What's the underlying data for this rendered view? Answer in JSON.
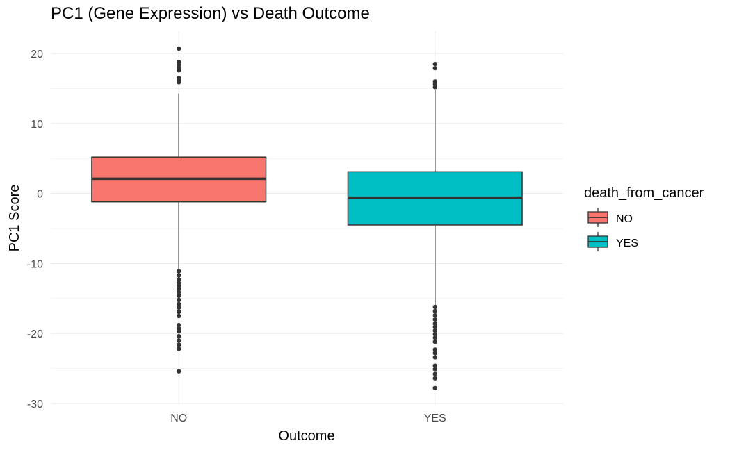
{
  "chart_data": {
    "type": "boxplot",
    "title": "PC1 (Gene Expression) vs Death Outcome",
    "xlabel": "Outcome",
    "ylabel": "PC1 Score",
    "categories": [
      "NO",
      "YES"
    ],
    "ylim": [
      -30,
      22
    ],
    "yticks": [
      -30,
      -20,
      -10,
      0,
      10,
      20
    ],
    "grid": true,
    "legend": {
      "title": "death_from_cancer",
      "placement": "right",
      "entries": [
        "NO",
        "YES"
      ]
    },
    "colors": {
      "NO": "#F8766D",
      "YES": "#00BFC4",
      "outline": "#333333",
      "grid": "#ebebeb"
    },
    "boxes": [
      {
        "category": "NO",
        "q1": -1.2,
        "median": 2.1,
        "q3": 5.2,
        "whisker_low": -10.8,
        "whisker_high": 14.3,
        "outliers": [
          20.7,
          18.8,
          18.4,
          18.0,
          17.6,
          16.5,
          16.2,
          15.9,
          -11.1,
          -11.7,
          -12.3,
          -12.8,
          -13.2,
          -13.6,
          -14.1,
          -14.6,
          -15.2,
          -15.8,
          -16.3,
          -16.9,
          -17.5,
          -18.8,
          -19.3,
          -19.7,
          -20.4,
          -21.0,
          -21.6,
          -22.2,
          -25.4
        ]
      },
      {
        "category": "YES",
        "q1": -4.5,
        "median": -0.6,
        "q3": 3.1,
        "whisker_low": -15.9,
        "whisker_high": 14.8,
        "outliers": [
          18.5,
          17.9,
          16.0,
          15.6,
          15.2,
          -16.2,
          -16.8,
          -17.4,
          -18.0,
          -18.6,
          -19.1,
          -19.6,
          -20.1,
          -20.6,
          -21.2,
          -22.3,
          -22.8,
          -23.4,
          -24.6,
          -25.1,
          -25.8,
          -26.4,
          -27.8
        ]
      }
    ]
  }
}
